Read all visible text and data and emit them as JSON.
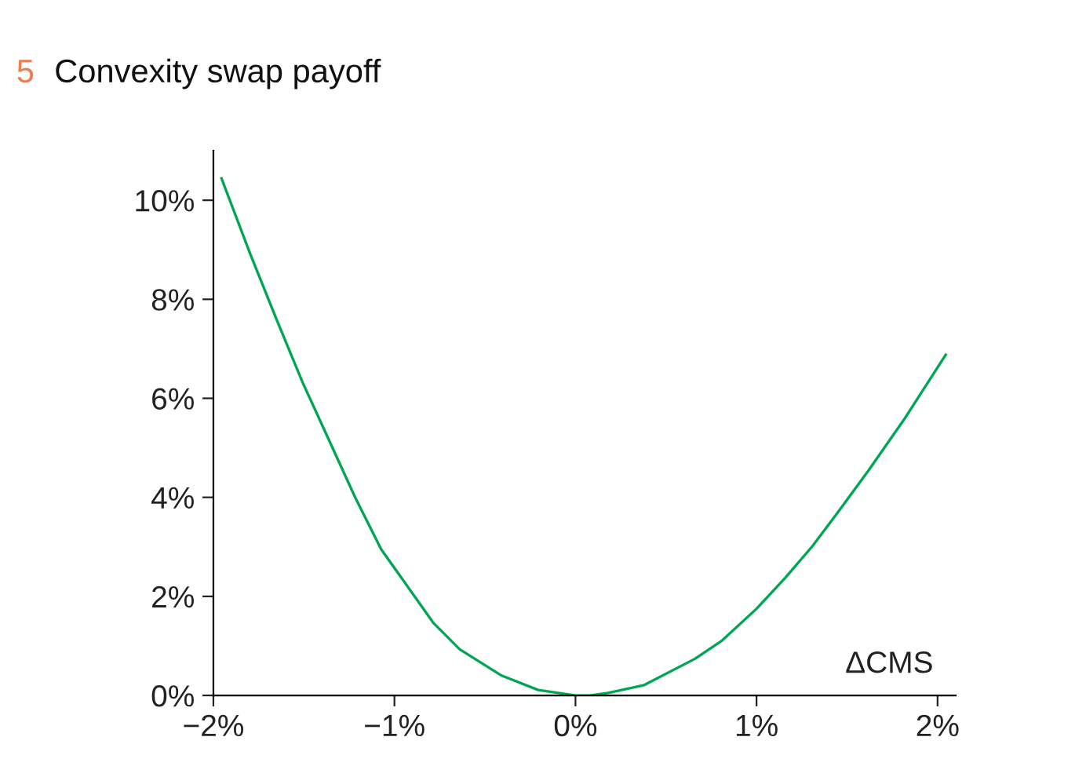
{
  "chart_data": {
    "type": "line",
    "title": "Convexity swap payoff",
    "xlabel": "ΔCMS",
    "annotations": [
      "5"
    ],
    "series": [
      {
        "color": "#00a651",
        "x": [
          -1.955,
          -1.796,
          -1.651,
          -1.507,
          -1.362,
          -1.217,
          -1.073,
          -0.784,
          -0.639,
          -0.408,
          -0.206,
          0.0,
          0.08,
          0.18,
          0.38,
          0.66,
          0.81,
          1.0,
          1.16,
          1.31,
          1.45,
          1.62,
          1.82,
          2.045
        ],
        "values": [
          10.44,
          8.91,
          7.59,
          6.32,
          5.16,
          4.0,
          2.95,
          1.46,
          0.93,
          0.4,
          0.11,
          0.0,
          0.0,
          0.05,
          0.21,
          0.74,
          1.11,
          1.75,
          2.38,
          3.02,
          3.7,
          4.55,
          5.6,
          6.88
        ]
      }
    ],
    "xlim": [
      -2,
      2.1
    ],
    "ylim": [
      0,
      11
    ],
    "xticks": [
      {
        "value": -2,
        "label": "−2%"
      },
      {
        "value": -1,
        "label": "−1%"
      },
      {
        "value": 0,
        "label": "0%"
      },
      {
        "value": 1,
        "label": "1%"
      },
      {
        "value": 2,
        "label": "2%"
      }
    ],
    "yticks": [
      {
        "value": 0,
        "label": "0%"
      },
      {
        "value": 2,
        "label": "2%"
      },
      {
        "value": 4,
        "label": "4%"
      },
      {
        "value": 6,
        "label": "6%"
      },
      {
        "value": 8,
        "label": "8%"
      },
      {
        "value": 10,
        "label": "10%"
      }
    ],
    "grid": false,
    "legend": false,
    "marker": "none",
    "line_style": "solid"
  }
}
